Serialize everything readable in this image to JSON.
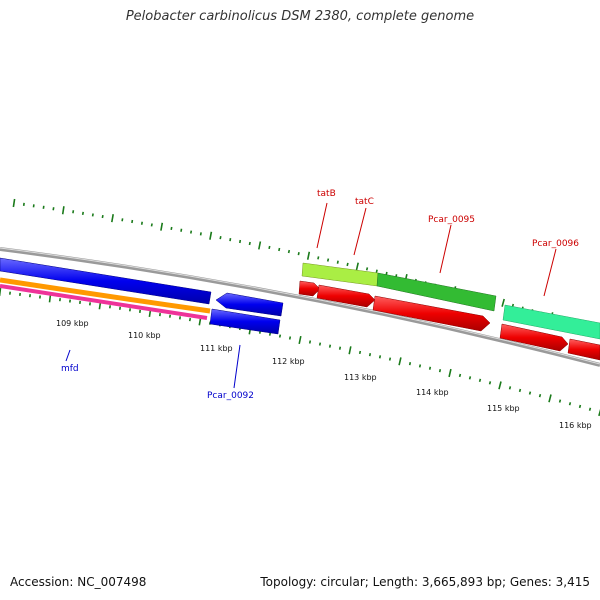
{
  "header": {
    "title": "Pelobacter carbinolicus DSM 2380, complete genome"
  },
  "footer": {
    "accession": "Accession: NC_007498",
    "summary": "Topology: circular; Length: 3,665,893 bp; Genes: 3,415"
  },
  "scale_labels": [
    "109 kbp",
    "110 kbp",
    "111 kbp",
    "112 kbp",
    "113 kbp",
    "114 kbp",
    "115 kbp",
    "116 kbp"
  ],
  "genes": [
    {
      "name": "mfd",
      "label_color": "#0000cc",
      "label_side": "below"
    },
    {
      "name": "Pcar_0092",
      "label_color": "#0000cc",
      "label_side": "below"
    },
    {
      "name": "tatB",
      "label_color": "#cc0000",
      "label_side": "above"
    },
    {
      "name": "tatC",
      "label_color": "#cc0000",
      "label_side": "above"
    },
    {
      "name": "Pcar_0095",
      "label_color": "#cc0000",
      "label_side": "above"
    },
    {
      "name": "Pcar_0096",
      "label_color": "#cc0000",
      "label_side": "above"
    }
  ],
  "colors": {
    "backbone": "#8a8a8a",
    "reverse_cds": "#1010e0",
    "forward_cds": "#ee0000",
    "orange_track": "#ff9900",
    "pink_track": "#ee3399",
    "lime_track": "#aaee44",
    "green_track": "#33bb33",
    "teal_track": "#33ee99",
    "tick": "#1a7a1a"
  }
}
